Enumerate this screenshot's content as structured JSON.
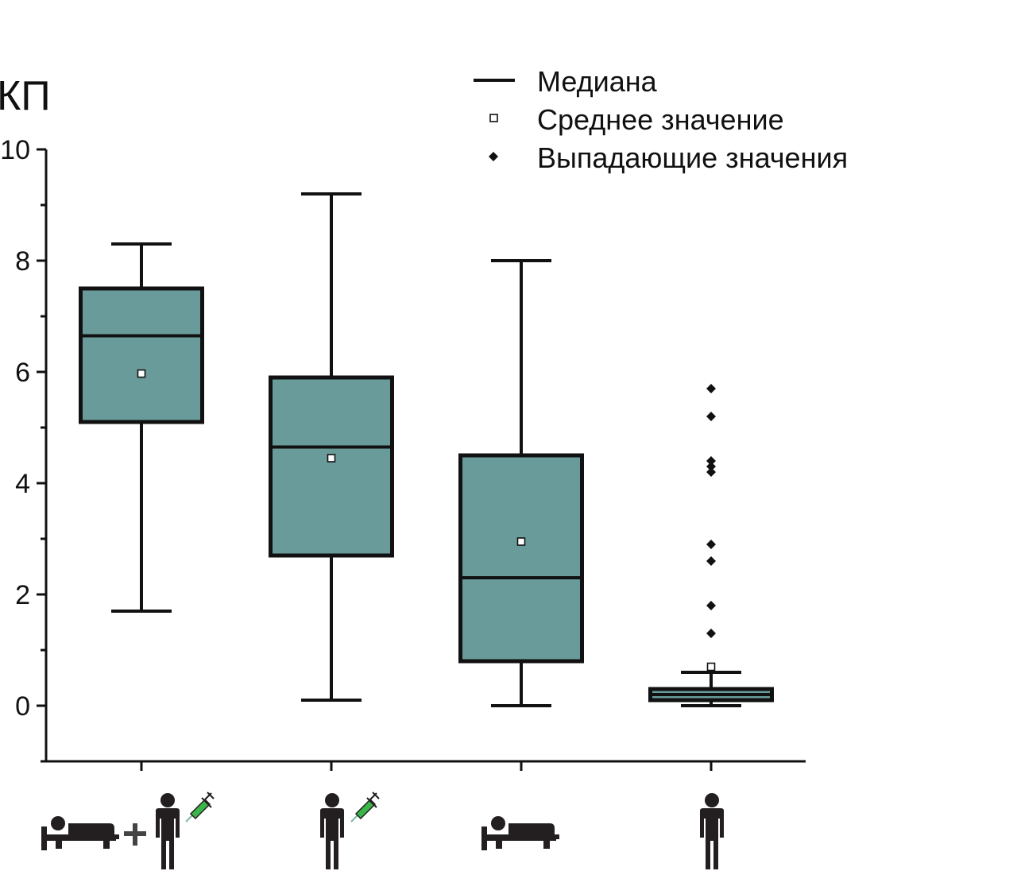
{
  "chart_data": {
    "type": "box",
    "ylabel": "КП",
    "ylim": [
      -1,
      10
    ],
    "yticks": [
      0,
      2,
      4,
      6,
      8,
      10
    ],
    "y_minor_step": 1,
    "categories": [
      "bed-rest-plus-vaccinated-person",
      "vaccinated-person",
      "bed-rest",
      "person"
    ],
    "category_icons": [
      [
        "bed-icon",
        "plus-icon",
        "person-icon",
        "syringe-icon"
      ],
      [
        "person-icon",
        "syringe-icon"
      ],
      [
        "bed-icon"
      ],
      [
        "person-icon"
      ]
    ],
    "box_color": "#6a9b9b",
    "boxes": [
      {
        "whisker_low": 1.7,
        "q1": 5.1,
        "median": 6.65,
        "q3": 7.5,
        "whisker_high": 8.3,
        "mean": 5.97,
        "outliers": []
      },
      {
        "whisker_low": 0.1,
        "q1": 2.7,
        "median": 4.65,
        "q3": 5.9,
        "whisker_high": 9.2,
        "mean": 4.45,
        "outliers": []
      },
      {
        "whisker_low": 0.0,
        "q1": 0.8,
        "median": 2.3,
        "q3": 4.5,
        "whisker_high": 8.0,
        "mean": 2.95,
        "outliers": []
      },
      {
        "whisker_low": 0.0,
        "q1": 0.1,
        "median": 0.2,
        "q3": 0.3,
        "whisker_high": 0.6,
        "mean": 0.7,
        "outliers": [
          1.3,
          1.8,
          2.6,
          2.9,
          4.2,
          4.3,
          4.4,
          5.2,
          5.7
        ]
      }
    ],
    "legend": {
      "position": "top-right",
      "items": [
        {
          "symbol": "line",
          "label": "Медиана"
        },
        {
          "symbol": "open-square",
          "label": "Среднее значение"
        },
        {
          "symbol": "filled-diamond",
          "label": "Выпадающие значения"
        }
      ]
    },
    "grid": false
  }
}
